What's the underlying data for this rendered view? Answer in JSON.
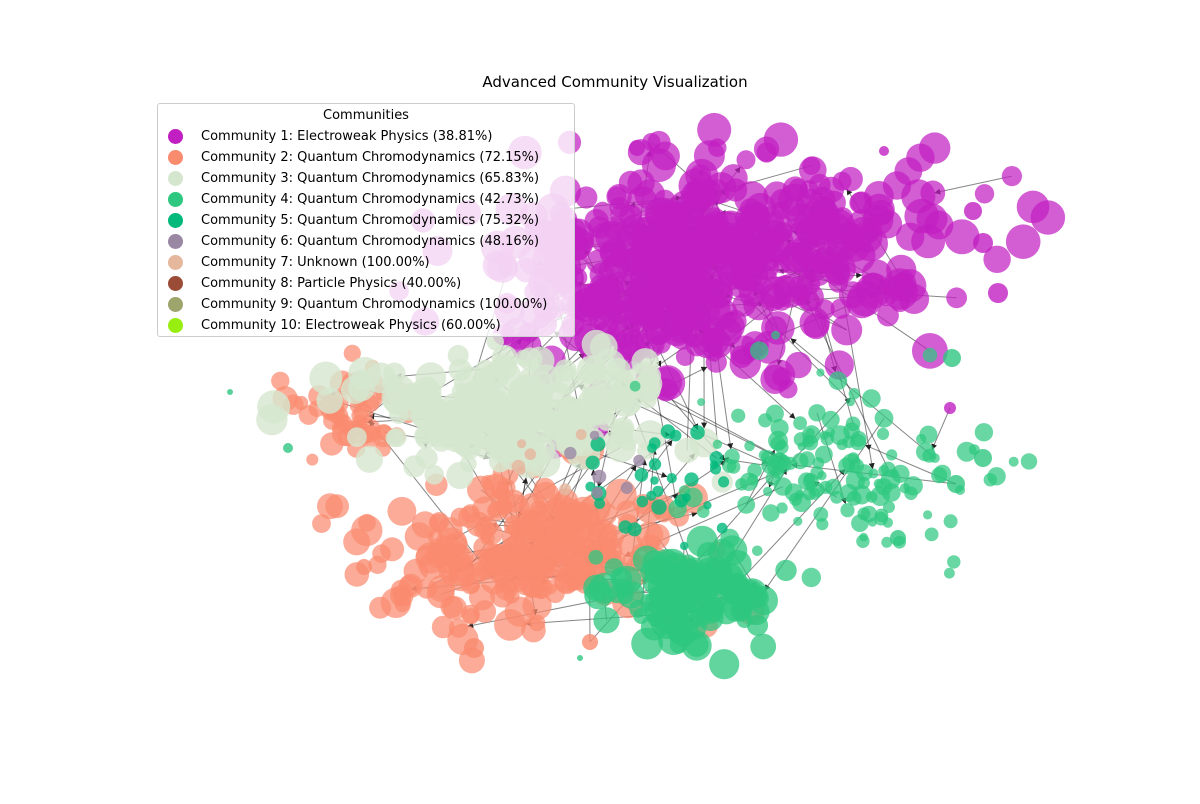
{
  "title": "Advanced Community Visualization",
  "chart_data": {
    "type": "network",
    "title": "Advanced Community Visualization",
    "legend": {
      "title": "Communities",
      "placement": "top-left"
    },
    "communities": [
      {
        "id": 1,
        "label": "Community 1: Electroweak Physics (38.81%)",
        "color": "#c21fc2"
      },
      {
        "id": 2,
        "label": "Community 2: Quantum Chromodynamics (72.15%)",
        "color": "#f98b6f"
      },
      {
        "id": 3,
        "label": "Community 3: Quantum Chromodynamics (65.83%)",
        "color": "#d5e6cf"
      },
      {
        "id": 4,
        "label": "Community 4: Quantum Chromodynamics (42.73%)",
        "color": "#2ec77f"
      },
      {
        "id": 5,
        "label": "Community 5: Quantum Chromodynamics (75.32%)",
        "color": "#00b97b"
      },
      {
        "id": 6,
        "label": "Community 6: Quantum Chromodynamics (48.16%)",
        "color": "#9a87a4"
      },
      {
        "id": 7,
        "label": "Community 7: Unknown (100.00%)",
        "color": "#e5b79d"
      },
      {
        "id": 8,
        "label": "Community 8: Particle Physics (40.00%)",
        "color": "#9a4c37"
      },
      {
        "id": 9,
        "label": "Community 9: Quantum Chromodynamics (100.00%)",
        "color": "#9da46c"
      },
      {
        "id": 10,
        "label": "Community 10: Electroweak Physics (60.00%)",
        "color": "#99ee11"
      }
    ],
    "grid": false,
    "axes": false
  }
}
